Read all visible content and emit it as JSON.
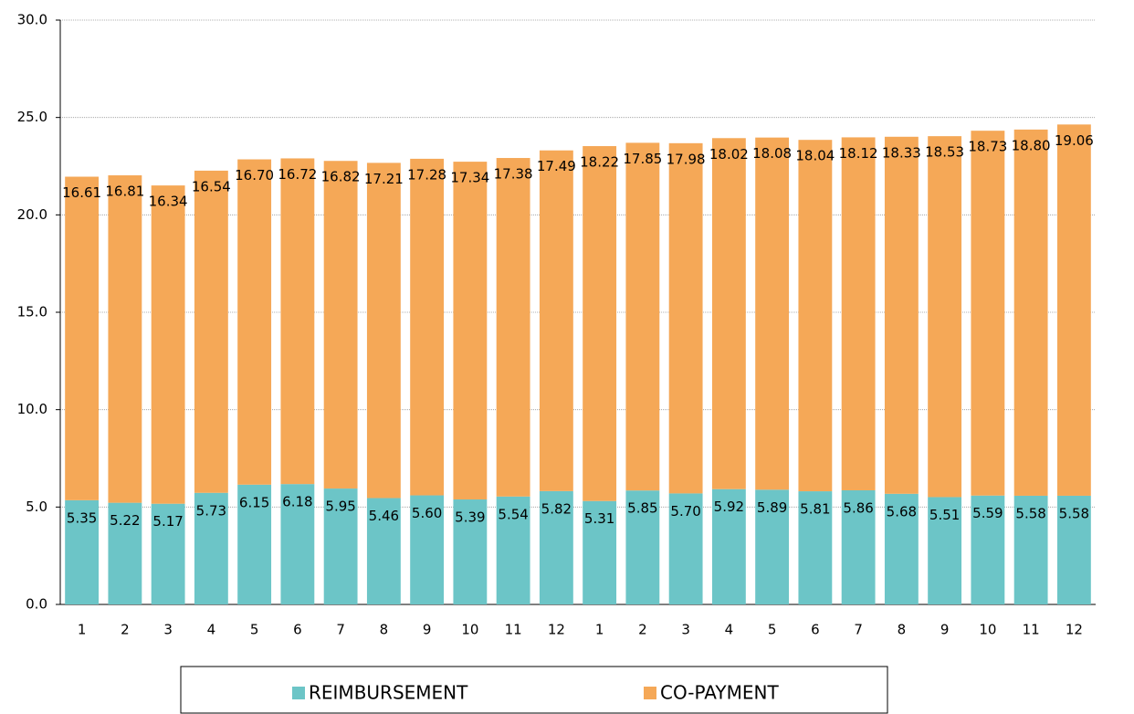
{
  "chart_data": {
    "type": "stacked_bar",
    "categories": [
      "1",
      "2",
      "3",
      "4",
      "5",
      "6",
      "7",
      "8",
      "9",
      "10",
      "11",
      "12",
      "1",
      "2",
      "3",
      "4",
      "5",
      "6",
      "7",
      "8",
      "9",
      "10",
      "11",
      "12"
    ],
    "series": [
      {
        "name": "REIMBURSEMENT",
        "color": "#6cc5c7",
        "values": [
          5.35,
          5.22,
          5.17,
          5.73,
          6.15,
          6.18,
          5.95,
          5.46,
          5.6,
          5.39,
          5.54,
          5.82,
          5.31,
          5.85,
          5.7,
          5.92,
          5.89,
          5.81,
          5.86,
          5.68,
          5.51,
          5.59,
          5.58,
          5.58
        ],
        "value_labels": [
          "5.35",
          "5.22",
          "5.17",
          "5.73",
          "6.15",
          "6.18",
          "5.95",
          "5.46",
          "5.60",
          "5.39",
          "5.54",
          "5.82",
          "5.31",
          "5.85",
          "5.70",
          "5.92",
          "5.89",
          "5.81",
          "5.86",
          "5.68",
          "5.51",
          "5.59",
          "5.58",
          "5.58"
        ]
      },
      {
        "name": "CO-PAYMENT",
        "color": "#f5a857",
        "values": [
          16.61,
          16.81,
          16.34,
          16.54,
          16.7,
          16.72,
          16.82,
          17.21,
          17.28,
          17.34,
          17.38,
          17.49,
          18.22,
          17.85,
          17.98,
          18.02,
          18.08,
          18.04,
          18.12,
          18.33,
          18.53,
          18.73,
          18.8,
          19.06
        ],
        "value_labels": [
          "16.61",
          "16.81",
          "16.34",
          "16.54",
          "16.70",
          "16.72",
          "16.82",
          "17.21",
          "17.28",
          "17.34",
          "17.38",
          "17.49",
          "18.22",
          "17.85",
          "17.98",
          "18.02",
          "18.08",
          "18.04",
          "18.12",
          "18.33",
          "18.53",
          "18.73",
          "18.80",
          "19.06"
        ]
      }
    ],
    "ylim": [
      0,
      30
    ],
    "yticks": [
      {
        "value": 0,
        "label": "0.0"
      },
      {
        "value": 5,
        "label": "5.0"
      },
      {
        "value": 10,
        "label": "10.0"
      },
      {
        "value": 15,
        "label": "15.0"
      },
      {
        "value": 20,
        "label": "20.0"
      },
      {
        "value": 25,
        "label": "25.0"
      },
      {
        "value": 30,
        "label": "30.0"
      }
    ],
    "grid": true,
    "legend": "bottom"
  }
}
